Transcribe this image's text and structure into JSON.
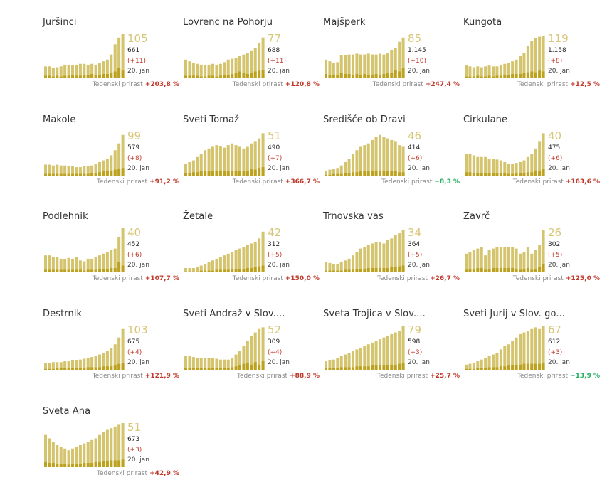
{
  "labels": {
    "date": "20. jan",
    "growth_label": "Tedenski prirast"
  },
  "colors": {
    "bar_light": "#d5c46e",
    "bar_dark": "#bca21f",
    "positive": "#c0392b",
    "negative": "#27ae60",
    "accent": "#d8c678"
  },
  "chart_data": [
    {
      "type": "bar",
      "title": "Juršinci",
      "current": "105",
      "total": "661",
      "delta": "(+11)",
      "growth": "+203,8 %",
      "values": [
        14,
        14,
        12,
        13,
        14,
        16,
        16,
        15,
        16,
        17,
        17,
        16,
        17,
        16,
        18,
        20,
        22,
        28,
        40,
        48,
        52
      ],
      "dark": [
        3,
        3,
        2,
        3,
        2,
        3,
        3,
        4,
        3,
        3,
        4,
        4,
        5,
        4,
        4,
        5,
        5,
        6,
        8,
        12,
        9
      ]
    },
    {
      "type": "bar",
      "title": "Lovrenc na Pohorju",
      "current": "77",
      "total": "688",
      "delta": "(+11)",
      "growth": "+120,8 %",
      "values": [
        22,
        20,
        18,
        17,
        16,
        16,
        16,
        17,
        16,
        17,
        19,
        22,
        23,
        24,
        26,
        28,
        30,
        32,
        36,
        42,
        48
      ],
      "dark": [
        3,
        3,
        3,
        3,
        2,
        2,
        3,
        3,
        2,
        3,
        4,
        4,
        5,
        6,
        8,
        6,
        5,
        6,
        8,
        9,
        10
      ]
    },
    {
      "type": "bar",
      "title": "Majšperk",
      "current": "85",
      "total": "1.145",
      "delta": "(+10)",
      "growth": "+247,4 %",
      "values": [
        22,
        20,
        18,
        19,
        27,
        27,
        28,
        28,
        29,
        28,
        28,
        29,
        28,
        28,
        29,
        28,
        30,
        33,
        36,
        43,
        48
      ],
      "dark": [
        5,
        4,
        4,
        4,
        6,
        5,
        5,
        4,
        5,
        4,
        5,
        4,
        4,
        5,
        4,
        5,
        6,
        6,
        10,
        8,
        12
      ]
    },
    {
      "type": "bar",
      "title": "Kungota",
      "current": "119",
      "total": "1.158",
      "delta": "(+8)",
      "growth": "+12,5 %",
      "values": [
        15,
        14,
        13,
        14,
        13,
        14,
        15,
        14,
        14,
        16,
        17,
        18,
        20,
        22,
        26,
        30,
        38,
        44,
        47,
        49,
        50
      ],
      "dark": [
        2,
        2,
        2,
        3,
        2,
        2,
        3,
        2,
        3,
        3,
        4,
        4,
        5,
        5,
        5,
        6,
        7,
        8,
        7,
        9,
        8
      ]
    },
    {
      "type": "bar",
      "title": "Makole",
      "current": "99",
      "total": "579",
      "delta": "(+8)",
      "growth": "+91,2 %",
      "values": [
        13,
        13,
        12,
        13,
        12,
        12,
        11,
        11,
        10,
        10,
        11,
        11,
        12,
        14,
        16,
        18,
        20,
        24,
        30,
        38,
        48
      ],
      "dark": [
        2,
        2,
        2,
        2,
        2,
        2,
        2,
        2,
        2,
        2,
        2,
        2,
        3,
        3,
        4,
        5,
        6,
        5,
        7,
        8,
        9
      ]
    },
    {
      "type": "bar",
      "title": "Sveti Tomaž",
      "current": "51",
      "total": "490",
      "delta": "(+7)",
      "growth": "+366,7 %",
      "values": [
        14,
        16,
        18,
        22,
        26,
        30,
        32,
        34,
        36,
        35,
        33,
        36,
        38,
        36,
        34,
        32,
        34,
        38,
        40,
        44,
        50
      ],
      "dark": [
        3,
        3,
        4,
        4,
        5,
        5,
        5,
        5,
        6,
        6,
        5,
        5,
        5,
        6,
        5,
        5,
        6,
        8,
        7,
        9,
        10
      ]
    },
    {
      "type": "bar",
      "title": "Središče ob Dravi",
      "current": "46",
      "total": "414",
      "delta": "(+6)",
      "growth": "−8,3 %",
      "values": [
        6,
        7,
        8,
        9,
        12,
        16,
        20,
        26,
        30,
        34,
        36,
        38,
        42,
        46,
        48,
        46,
        44,
        42,
        40,
        36,
        34
      ],
      "dark": [
        1,
        1,
        2,
        2,
        2,
        3,
        3,
        4,
        4,
        5,
        5,
        5,
        5,
        6,
        6,
        5,
        5,
        5,
        5,
        4,
        4
      ]
    },
    {
      "type": "bar",
      "title": "Cirkulane",
      "current": "40",
      "total": "475",
      "delta": "(+6)",
      "growth": "+163,6 %",
      "values": [
        26,
        26,
        24,
        22,
        22,
        22,
        20,
        20,
        19,
        18,
        16,
        14,
        14,
        15,
        16,
        18,
        22,
        26,
        32,
        40,
        50
      ],
      "dark": [
        4,
        4,
        3,
        3,
        3,
        3,
        3,
        3,
        3,
        3,
        3,
        2,
        2,
        3,
        3,
        3,
        4,
        4,
        6,
        6,
        8
      ]
    },
    {
      "type": "bar",
      "title": "Podlehnik",
      "current": "40",
      "total": "452",
      "delta": "(+6)",
      "growth": "+107,7 %",
      "values": [
        20,
        20,
        18,
        18,
        16,
        16,
        17,
        16,
        18,
        14,
        13,
        16,
        16,
        18,
        20,
        22,
        24,
        26,
        28,
        42,
        52
      ],
      "dark": [
        3,
        3,
        3,
        3,
        3,
        3,
        3,
        3,
        3,
        3,
        2,
        3,
        3,
        3,
        4,
        4,
        4,
        5,
        5,
        12,
        8
      ]
    },
    {
      "type": "bar",
      "title": "Žetale",
      "current": "42",
      "total": "312",
      "delta": "(+5)",
      "growth": "+150,0 %",
      "values": [
        5,
        5,
        5,
        6,
        8,
        10,
        12,
        14,
        16,
        18,
        20,
        22,
        24,
        26,
        28,
        30,
        32,
        34,
        36,
        40,
        48
      ],
      "dark": [
        1,
        1,
        1,
        1,
        2,
        2,
        2,
        2,
        3,
        3,
        3,
        3,
        4,
        4,
        4,
        4,
        5,
        5,
        6,
        7,
        8
      ]
    },
    {
      "type": "bar",
      "title": "Trnovska vas",
      "current": "34",
      "total": "364",
      "delta": "(+5)",
      "growth": "+26,7 %",
      "values": [
        12,
        11,
        10,
        10,
        12,
        14,
        16,
        20,
        24,
        28,
        30,
        32,
        34,
        36,
        36,
        34,
        38,
        40,
        44,
        46,
        50
      ],
      "dark": [
        2,
        2,
        2,
        2,
        2,
        3,
        3,
        3,
        4,
        4,
        4,
        5,
        5,
        5,
        5,
        5,
        5,
        6,
        6,
        7,
        8
      ]
    },
    {
      "type": "bar",
      "title": "Zavrč",
      "current": "26",
      "total": "302",
      "delta": "(+5)",
      "growth": "+125,0 %",
      "values": [
        22,
        24,
        26,
        28,
        30,
        20,
        26,
        28,
        30,
        30,
        30,
        30,
        30,
        28,
        22,
        24,
        30,
        22,
        26,
        32,
        50
      ],
      "dark": [
        3,
        4,
        4,
        5,
        5,
        3,
        4,
        5,
        5,
        5,
        5,
        5,
        5,
        4,
        3,
        4,
        5,
        3,
        4,
        6,
        10
      ]
    },
    {
      "type": "bar",
      "title": "Destrnik",
      "current": "103",
      "total": "675",
      "delta": "(+4)",
      "growth": "+121,9 %",
      "values": [
        8,
        8,
        9,
        9,
        9,
        10,
        10,
        11,
        11,
        12,
        13,
        14,
        15,
        16,
        18,
        20,
        22,
        26,
        30,
        38,
        48
      ],
      "dark": [
        1,
        1,
        1,
        2,
        2,
        2,
        2,
        2,
        2,
        2,
        2,
        3,
        3,
        3,
        3,
        4,
        4,
        4,
        5,
        7,
        8
      ]
    },
    {
      "type": "bar",
      "title": "Sveti Andraž v Slov....",
      "current": "52",
      "total": "309",
      "delta": "(+4)",
      "growth": "+88,9 %",
      "values": [
        16,
        16,
        15,
        14,
        14,
        14,
        14,
        14,
        13,
        12,
        12,
        12,
        14,
        18,
        22,
        28,
        34,
        40,
        44,
        48,
        50
      ],
      "dark": [
        2,
        2,
        2,
        2,
        2,
        2,
        2,
        2,
        2,
        2,
        2,
        2,
        3,
        4,
        5,
        7,
        8,
        6,
        9,
        6,
        10
      ]
    },
    {
      "type": "bar",
      "title": "Sveta Trojica v Slov....",
      "current": "79",
      "total": "598",
      "delta": "(+3)",
      "growth": "+25,7 %",
      "values": [
        10,
        11,
        12,
        14,
        16,
        18,
        20,
        22,
        24,
        26,
        28,
        30,
        32,
        34,
        36,
        38,
        40,
        42,
        44,
        46,
        52
      ],
      "dark": [
        2,
        2,
        2,
        2,
        3,
        3,
        3,
        3,
        4,
        4,
        4,
        4,
        5,
        5,
        5,
        5,
        6,
        6,
        6,
        7,
        8
      ]
    },
    {
      "type": "bar",
      "title": "Sveti Jurij v Slov. go...",
      "current": "67",
      "total": "612",
      "delta": "(+3)",
      "growth": "−13,9 %",
      "values": [
        6,
        7,
        8,
        10,
        12,
        14,
        16,
        18,
        20,
        24,
        28,
        30,
        34,
        38,
        42,
        44,
        46,
        48,
        50,
        48,
        52
      ],
      "dark": [
        1,
        1,
        1,
        2,
        2,
        2,
        3,
        3,
        3,
        4,
        4,
        5,
        5,
        6,
        6,
        7,
        7,
        7,
        7,
        7,
        8
      ]
    },
    {
      "type": "bar",
      "title": "Sveta Ana",
      "current": "51",
      "total": "673",
      "delta": "(+3)",
      "growth": "+42,9 %",
      "values": [
        38,
        34,
        30,
        26,
        24,
        22,
        20,
        22,
        24,
        26,
        28,
        30,
        32,
        34,
        38,
        42,
        44,
        46,
        48,
        50,
        52
      ],
      "dark": [
        6,
        5,
        5,
        4,
        4,
        4,
        3,
        4,
        4,
        4,
        5,
        5,
        5,
        6,
        6,
        7,
        7,
        8,
        8,
        8,
        9
      ]
    }
  ]
}
